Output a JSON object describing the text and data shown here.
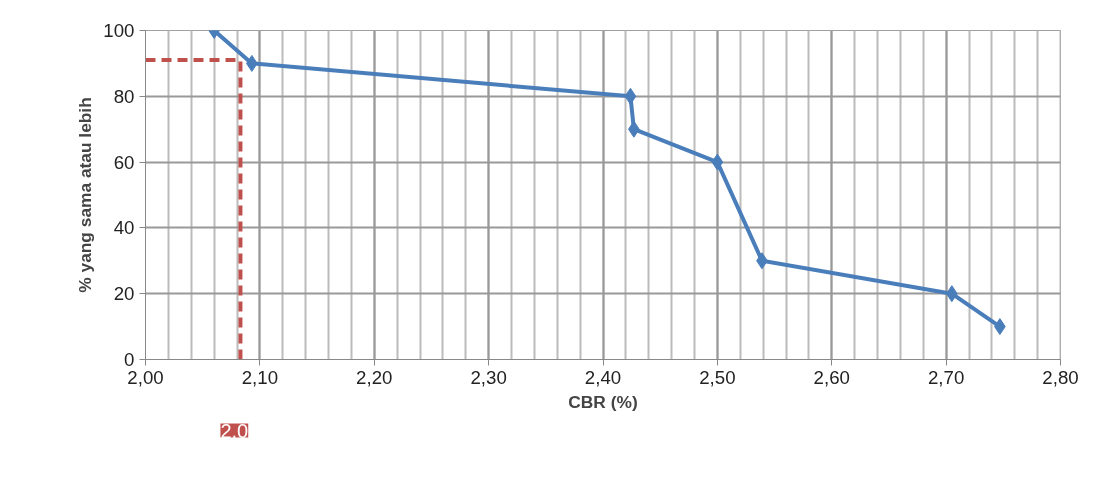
{
  "chart_data": {
    "type": "line",
    "xlabel": "CBR (%)",
    "ylabel": "% yang sama atau lebih",
    "x": [
      2.06,
      2.093,
      2.424,
      2.427,
      2.5,
      2.539,
      2.705,
      2.747
    ],
    "series": [
      {
        "color": "#4a7ebb",
        "values": [
          100,
          90,
          80,
          70,
          60,
          30,
          20,
          10
        ],
        "marker": "diamond",
        "line_style": "solid"
      }
    ],
    "ref_lines": [
      {
        "axis": "y",
        "value": 91,
        "color": "#c0504d",
        "line_style": "dashed"
      },
      {
        "axis": "x",
        "value": 2.083,
        "color": "#c0504d",
        "line_style": "dashed"
      }
    ],
    "xlim": [
      2.0,
      2.8
    ],
    "xticks": [
      {
        "value": 2.0,
        "label": "2,00"
      },
      {
        "value": 2.1,
        "label": "2,10"
      },
      {
        "value": 2.2,
        "label": "2,20"
      },
      {
        "value": 2.3,
        "label": "2,30"
      },
      {
        "value": 2.4,
        "label": "2,40"
      },
      {
        "value": 2.5,
        "label": "2,50"
      },
      {
        "value": 2.6,
        "label": "2,60"
      },
      {
        "value": 2.7,
        "label": "2,70"
      },
      {
        "value": 2.8,
        "label": "2,80"
      }
    ],
    "ylim": [
      0,
      100
    ],
    "yticks": [
      0,
      20,
      40,
      60,
      80,
      100
    ],
    "grid": true,
    "annotations": [
      "2,0"
    ]
  }
}
